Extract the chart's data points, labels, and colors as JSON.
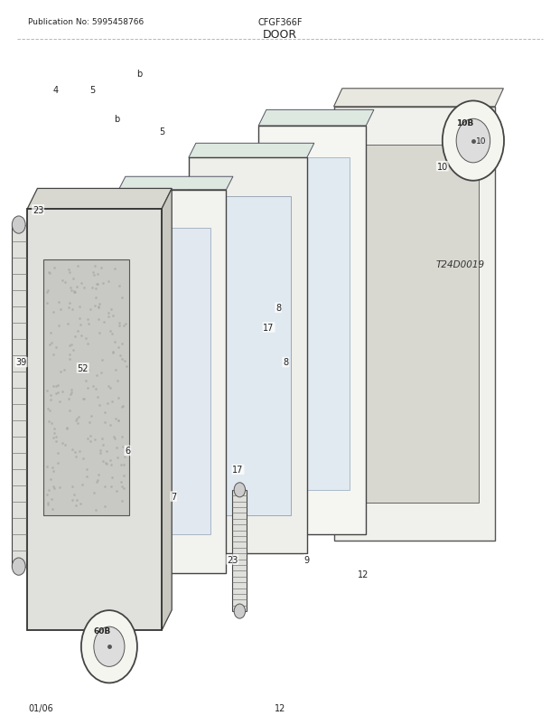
{
  "title": "DOOR",
  "pub_no": "Publication No: 5995458766",
  "model": "CFGF366F",
  "diagram_id": "T24D0019",
  "page_date": "01/06",
  "page_num": "12",
  "bg_color": "#ffffff",
  "line_color": "#333333",
  "label_color": "#222222"
}
